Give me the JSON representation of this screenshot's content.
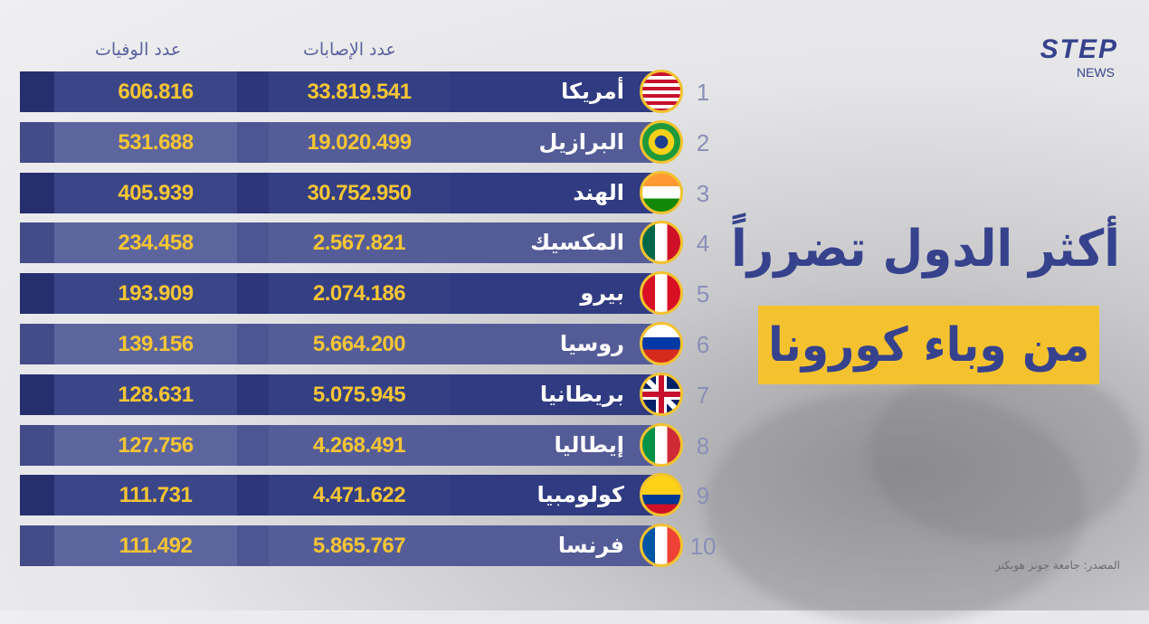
{
  "logo": {
    "brand": "STEP",
    "sub": "NEWS"
  },
  "headers": {
    "deaths": "عدد الوفيات",
    "cases": "عدد الإصابات"
  },
  "title": {
    "line1": "أكثر الدول تضرراً",
    "line2": "من وباء كورونا"
  },
  "source": "المصدر: جامعة جونز هوبكنز",
  "colors": {
    "navy": "#303b82",
    "accent_yellow": "#f4c22f",
    "number_yellow": "#f5c534"
  },
  "rows": [
    {
      "rank": "1",
      "country": "أمريكا",
      "flag": "usa-flag",
      "cases": "33.819.541",
      "deaths": "606.816"
    },
    {
      "rank": "2",
      "country": "البرازيل",
      "flag": "brazil-flag",
      "cases": "19.020.499",
      "deaths": "531.688"
    },
    {
      "rank": "3",
      "country": "الهند",
      "flag": "india-flag",
      "cases": "30.752.950",
      "deaths": "405.939"
    },
    {
      "rank": "4",
      "country": "المكسيك",
      "flag": "mexico-flag",
      "cases": "2.567.821",
      "deaths": "234.458"
    },
    {
      "rank": "5",
      "country": "بيرو",
      "flag": "peru-flag",
      "cases": "2.074.186",
      "deaths": "193.909"
    },
    {
      "rank": "6",
      "country": "روسيا",
      "flag": "russia-flag",
      "cases": "5.664.200",
      "deaths": "139.156"
    },
    {
      "rank": "7",
      "country": "بريطانيا",
      "flag": "uk-flag",
      "cases": "5.075.945",
      "deaths": "128.631"
    },
    {
      "rank": "8",
      "country": "إيطاليا",
      "flag": "italy-flag",
      "cases": "4.268.491",
      "deaths": "127.756"
    },
    {
      "rank": "9",
      "country": "كولومبيا",
      "flag": "colombia-flag",
      "cases": "4.471.622",
      "deaths": "111.731"
    },
    {
      "rank": "10",
      "country": "فرنسا",
      "flag": "france-flag",
      "cases": "5.865.767",
      "deaths": "111.492"
    }
  ]
}
